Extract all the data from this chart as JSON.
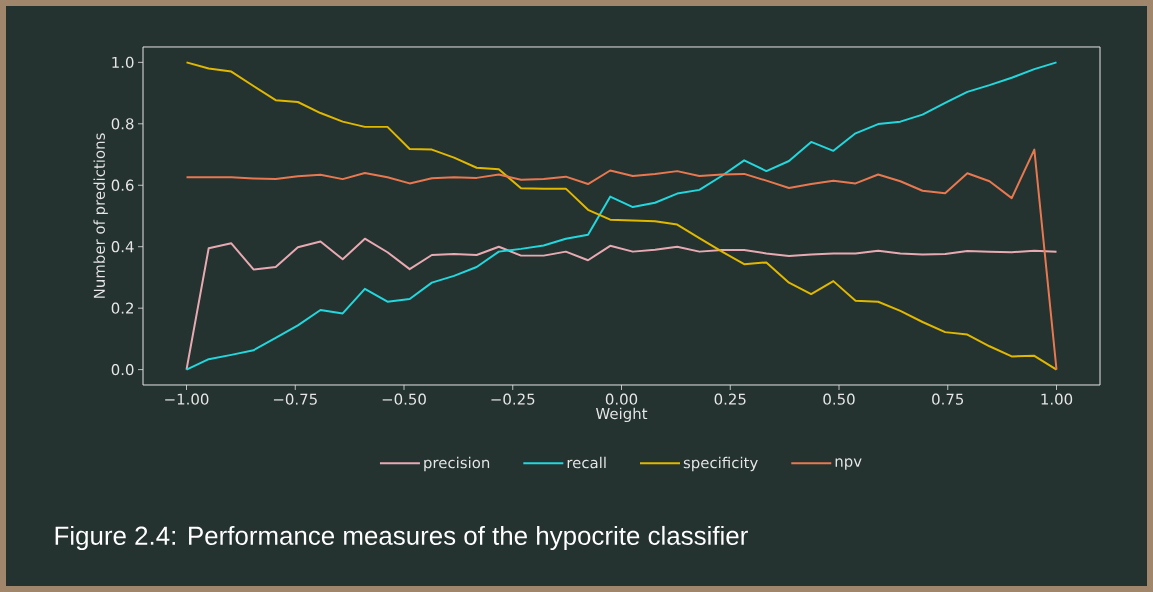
{
  "chart_data": {
    "type": "line",
    "xlabel": "Weight",
    "ylabel": "Number of predictions",
    "annotations": [
      "Figure 2.4: Performance measures of the hypocrite classifier"
    ],
    "x": [
      -1,
      -0.949,
      -0.897,
      -0.846,
      -0.795,
      -0.744,
      -0.692,
      -0.641,
      -0.59,
      -0.538,
      -0.487,
      -0.436,
      -0.385,
      -0.333,
      -0.282,
      -0.231,
      -0.179,
      -0.128,
      -0.077,
      -0.026,
      0.026,
      0.077,
      0.128,
      0.179,
      0.231,
      0.282,
      0.333,
      0.385,
      0.436,
      0.487,
      0.538,
      0.59,
      0.641,
      0.692,
      0.744,
      0.795,
      0.846,
      0.897,
      0.949,
      1
    ],
    "series": [
      {
        "name": "precision",
        "color": "#e8aab2",
        "values": [
          0.0,
          0.395,
          0.411,
          0.326,
          0.334,
          0.398,
          0.417,
          0.359,
          0.426,
          0.382,
          0.327,
          0.373,
          0.376,
          0.373,
          0.4,
          0.371,
          0.371,
          0.384,
          0.356,
          0.403,
          0.384,
          0.39,
          0.4,
          0.384,
          0.389,
          0.389,
          0.378,
          0.37,
          0.375,
          0.378,
          0.378,
          0.387,
          0.378,
          0.375,
          0.376,
          0.386,
          0.384,
          0.382,
          0.387,
          0.384
        ]
      },
      {
        "name": "recall",
        "color": "#22d8dd",
        "values": [
          0.0,
          0.034,
          0.048,
          0.063,
          0.103,
          0.144,
          0.194,
          0.183,
          0.263,
          0.221,
          0.23,
          0.283,
          0.305,
          0.334,
          0.384,
          0.393,
          0.404,
          0.426,
          0.439,
          0.563,
          0.529,
          0.543,
          0.573,
          0.585,
          0.631,
          0.681,
          0.646,
          0.679,
          0.741,
          0.712,
          0.769,
          0.799,
          0.807,
          0.83,
          0.868,
          0.904,
          0.926,
          0.95,
          0.978,
          1.0
        ]
      },
      {
        "name": "specificity",
        "color": "#e0b800",
        "values": [
          1.0,
          0.98,
          0.97,
          0.923,
          0.877,
          0.871,
          0.835,
          0.807,
          0.79,
          0.79,
          0.718,
          0.716,
          0.69,
          0.657,
          0.652,
          0.59,
          0.589,
          0.589,
          0.52,
          0.488,
          0.485,
          0.483,
          0.472,
          0.428,
          0.384,
          0.343,
          0.349,
          0.283,
          0.246,
          0.288,
          0.224,
          0.221,
          0.191,
          0.155,
          0.122,
          0.114,
          0.076,
          0.043,
          0.045,
          0.0
        ]
      },
      {
        "name": "npv",
        "color": "#e87850",
        "values": [
          0.626,
          0.626,
          0.626,
          0.622,
          0.62,
          0.629,
          0.634,
          0.62,
          0.64,
          0.626,
          0.606,
          0.623,
          0.626,
          0.624,
          0.635,
          0.618,
          0.62,
          0.628,
          0.604,
          0.648,
          0.63,
          0.637,
          0.646,
          0.63,
          0.635,
          0.637,
          0.615,
          0.591,
          0.604,
          0.615,
          0.606,
          0.635,
          0.613,
          0.582,
          0.574,
          0.639,
          0.613,
          0.558,
          0.716,
          0.0
        ]
      }
    ],
    "xlim": [
      -1.1,
      1.1
    ],
    "ylim": [
      -0.05,
      1.05
    ],
    "xticks": [
      {
        "value": -1,
        "label": "−1.00"
      },
      {
        "value": -0.75,
        "label": "−0.75"
      },
      {
        "value": -0.5,
        "label": "−0.50"
      },
      {
        "value": -0.25,
        "label": "−0.25"
      },
      {
        "value": 0,
        "label": "0.00"
      },
      {
        "value": 0.25,
        "label": "0.25"
      },
      {
        "value": 0.5,
        "label": "0.50"
      },
      {
        "value": 0.75,
        "label": "0.75"
      },
      {
        "value": 1,
        "label": "1.00"
      }
    ],
    "yticks": [
      {
        "value": 0,
        "label": "0.0"
      },
      {
        "value": 0.2,
        "label": "0.2"
      },
      {
        "value": 0.4,
        "label": "0.4"
      },
      {
        "value": 0.6,
        "label": "0.6"
      },
      {
        "value": 0.8,
        "label": "0.8"
      },
      {
        "value": 1,
        "label": "1.0"
      }
    ],
    "grid": false,
    "legend": "bottom",
    "marker": "none",
    "line_style": "solid"
  }
}
